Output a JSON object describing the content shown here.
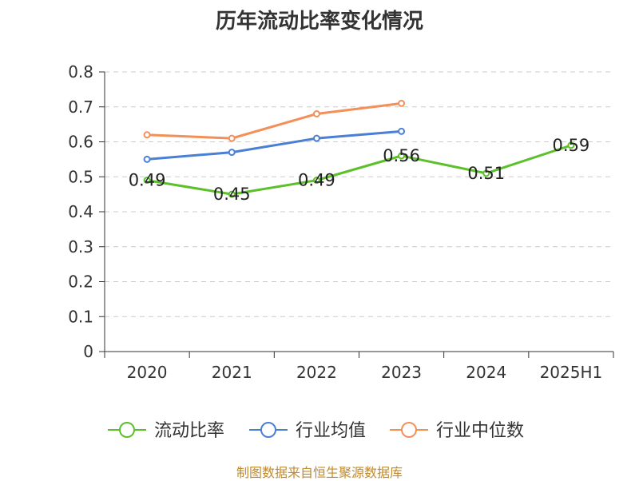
{
  "chart_data": {
    "type": "line",
    "title": "历年流动比率变化情况",
    "categories": [
      "2020",
      "2021",
      "2022",
      "2023",
      "2024",
      "2025H1"
    ],
    "ylim": [
      0,
      0.8
    ],
    "yticks": [
      "0",
      "0.1",
      "0.2",
      "0.3",
      "0.4",
      "0.5",
      "0.6",
      "0.7",
      "0.8"
    ],
    "grid": "horizontal-dashed",
    "legend_position": "bottom",
    "series": [
      {
        "name": "流动比率",
        "color": "#5cc02a",
        "values": [
          0.49,
          0.45,
          0.49,
          0.56,
          0.51,
          0.59
        ],
        "data_labels": [
          "0.49",
          "0.45",
          "0.49",
          "0.56",
          "0.51",
          "0.59"
        ]
      },
      {
        "name": "行业均值",
        "color": "#4a7fd6",
        "values": [
          0.55,
          0.57,
          0.61,
          0.63,
          null,
          null
        ]
      },
      {
        "name": "行业中位数",
        "color": "#f39058",
        "values": [
          0.62,
          0.61,
          0.68,
          0.71,
          null,
          null
        ]
      }
    ]
  },
  "source": "制图数据来自恒生聚源数据库"
}
